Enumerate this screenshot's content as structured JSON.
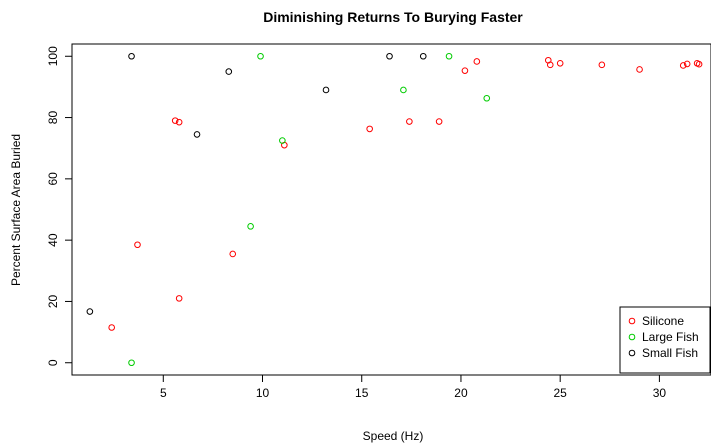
{
  "chart_data": {
    "type": "scatter",
    "title": "Diminishing Returns To Burying Faster",
    "xlabel": "Speed (Hz)",
    "ylabel": "Percent Surface Area Buried",
    "xlim": [
      0.4,
      32.6
    ],
    "ylim": [
      -4,
      104
    ],
    "xticks": [
      5,
      10,
      15,
      20,
      25,
      30
    ],
    "yticks": [
      0,
      20,
      40,
      60,
      80,
      100
    ],
    "grid": false,
    "legend_position": "bottom-right",
    "series": [
      {
        "name": "Silicone",
        "color": "#ff0000",
        "points": [
          [
            2.4,
            11.5
          ],
          [
            3.7,
            38.5
          ],
          [
            5.6,
            79
          ],
          [
            5.8,
            78.5
          ],
          [
            5.8,
            21
          ],
          [
            8.5,
            35.5
          ],
          [
            11.1,
            71
          ],
          [
            15.4,
            76.3
          ],
          [
            17.4,
            78.7
          ],
          [
            18.9,
            78.7
          ],
          [
            20.2,
            95.3
          ],
          [
            20.8,
            98.3
          ],
          [
            24.4,
            98.7
          ],
          [
            24.5,
            97.2
          ],
          [
            25,
            97.7
          ],
          [
            27.1,
            97.2
          ],
          [
            29,
            95.7
          ],
          [
            31.2,
            97
          ],
          [
            31.4,
            97.5
          ],
          [
            31.9,
            97.7
          ],
          [
            32,
            97.4
          ]
        ]
      },
      {
        "name": "Large Fish",
        "color": "#00cc00",
        "points": [
          [
            3.4,
            0
          ],
          [
            9.4,
            44.5
          ],
          [
            9.9,
            100
          ],
          [
            11,
            72.5
          ],
          [
            17.1,
            89
          ],
          [
            19.4,
            100
          ],
          [
            21.3,
            86.3
          ]
        ]
      },
      {
        "name": "Small Fish",
        "color": "#000000",
        "points": [
          [
            1.3,
            16.7
          ],
          [
            3.4,
            100
          ],
          [
            6.7,
            74.5
          ],
          [
            8.3,
            95
          ],
          [
            13.2,
            89
          ],
          [
            16.4,
            100
          ],
          [
            18.1,
            100
          ]
        ]
      }
    ]
  }
}
